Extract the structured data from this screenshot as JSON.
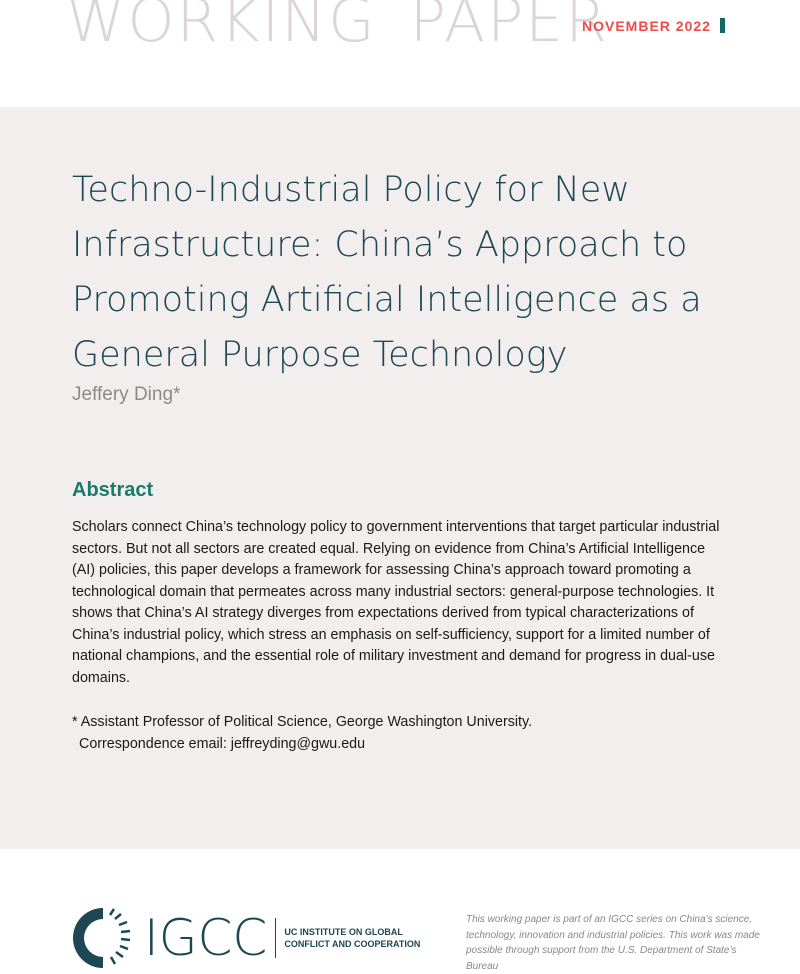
{
  "header": {
    "label": "WORKING PAPER",
    "date": "NOVEMBER 2022",
    "accent": "#0f6b61",
    "date_color": "#ef4b4b"
  },
  "title": "Techno-Industrial Policy for New Infrastructure: China’s Approach to Promoting Artificial Intelligence as a General Purpose Technology",
  "author": "Jeffery Ding*",
  "abstract": {
    "heading": "Abstract",
    "text": "Scholars connect China’s technology policy to government interventions that target particular industrial sectors. But not all sectors are created equal. Relying on evidence from China’s Artificial Intelligence (AI) policies, this paper develops a framework for assessing China’s approach toward promoting a technological domain that permeates across many industrial sectors: general-purpose technologies. It shows that China’s AI strategy diverges from expectations derived from typical characterizations of China’s industrial policy, which stress an emphasis on self-sufficiency, support for a limited number of national champions, and the essential role of military investment and demand for progress in dual-use domains."
  },
  "footnote": {
    "line1": "* Assistant Professor of Political Science, George Washington University.",
    "line2": "Correspondence email: jeffreyding@gwu.edu"
  },
  "footer": {
    "logo_text": "IGCC",
    "institute_line1": "UC INSTITUTE ON GLOBAL",
    "institute_line2": "CONFLICT AND COOPERATION",
    "note": "This working paper is part of an IGCC series on China’s science, technology, innovation and industrial policies. This work was made possible through support from the U.S. Department of State’s Bureau"
  }
}
